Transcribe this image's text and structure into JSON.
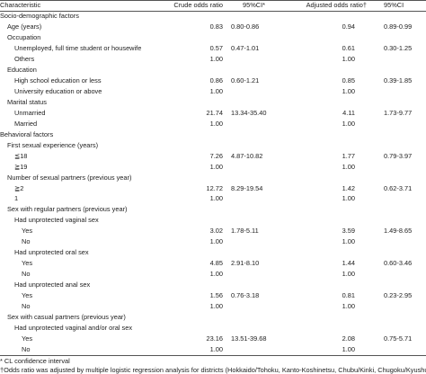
{
  "table": {
    "header": [
      "Characteristic",
      "Crude odds ratio",
      "95%CI*",
      "Adjusted odds ratio†",
      "95%CI"
    ],
    "rows": [
      {
        "label": "Socio-demographic factors"
      },
      {
        "label": "Age (years)",
        "crude": "0.83",
        "crude_ci": "0.80-0.86",
        "adjusted": "0.94",
        "adjusted_ci": "0.89-0.99"
      },
      {
        "label": "Occupation"
      },
      {
        "label": "Unemployed, full time student or housewife",
        "crude": "0.57",
        "crude_ci": "0.47-1.01",
        "adjusted": "0.61",
        "adjusted_ci": "0.30-1.25"
      },
      {
        "label": "Others",
        "crude": "1.00",
        "adjusted": "1.00"
      },
      {
        "label": "Education"
      },
      {
        "label": "High school education or less",
        "crude": "0.86",
        "crude_ci": "0.60-1.21",
        "adjusted": "0.85",
        "adjusted_ci": "0.39-1.85"
      },
      {
        "label": "University education or above",
        "crude": "1.00",
        "adjusted": "1.00"
      },
      {
        "label": "Marital status"
      },
      {
        "label": "Unmarried",
        "crude": "21.74",
        "crude_ci": "13.34-35.40",
        "adjusted": "4.11",
        "adjusted_ci": "1.73-9.77"
      },
      {
        "label": "Married",
        "crude": "1.00",
        "adjusted": "1.00"
      },
      {
        "label": "Behavioral factors"
      },
      {
        "label": "First sexual experience (years)"
      },
      {
        "label": "≦18",
        "crude": "7.26",
        "crude_ci": "4.87-10.82",
        "adjusted": "1.77",
        "adjusted_ci": "0.79-3.97"
      },
      {
        "label": "≧19",
        "crude": "1.00",
        "adjusted": "1.00"
      },
      {
        "label": "Number of sexual partners (previous year)"
      },
      {
        "label": "≧2",
        "crude": "12.72",
        "crude_ci": "8.29-19.54",
        "adjusted": "1.42",
        "adjusted_ci": "0.62-3.71"
      },
      {
        "label": "1",
        "crude": "1.00",
        "adjusted": "1.00"
      },
      {
        "label": "Sex with regular partners (previous year)"
      },
      {
        "label": "Had unprotected vaginal sex"
      },
      {
        "label": "Yes",
        "crude": "3.02",
        "crude_ci": "1.78-5.11",
        "adjusted": "3.59",
        "adjusted_ci": "1.49-8.65"
      },
      {
        "label": "No",
        "crude": "1.00",
        "adjusted": "1.00"
      },
      {
        "label": "Had unprotected oral sex"
      },
      {
        "label": "Yes",
        "crude": "4.85",
        "crude_ci": "2.91-8.10",
        "adjusted": "1.44",
        "adjusted_ci": "0.60-3.46"
      },
      {
        "label": "No",
        "crude": "1.00",
        "adjusted": "1.00"
      },
      {
        "label": "Had unprotected anal sex"
      },
      {
        "label": "Yes",
        "crude": "1.56",
        "crude_ci": "0.76-3.18",
        "adjusted": "0.81",
        "adjusted_ci": "0.23-2.95"
      },
      {
        "label": "No",
        "crude": "1.00",
        "adjusted": "1.00"
      },
      {
        "label": "Sex with casual partners (previous year)"
      },
      {
        "label": "Had unprotected vaginal and/or oral sex"
      },
      {
        "label": "Yes",
        "crude": "23.16",
        "crude_ci": "13.51-39.68",
        "adjusted": "2.08",
        "adjusted_ci": "0.75-5.71"
      },
      {
        "label": "No",
        "crude": "1.00",
        "adjusted": "1.00"
      }
    ],
    "footnotes": [
      "* CL confidence interval",
      "†Odds ratio was adjusted by multiple logistic regression analysis for districts (Hokkaido/Tohoku, Kanto-Koshinetsu, Chubu/Kinki, Chugoku/Kyushu)"
    ]
  }
}
